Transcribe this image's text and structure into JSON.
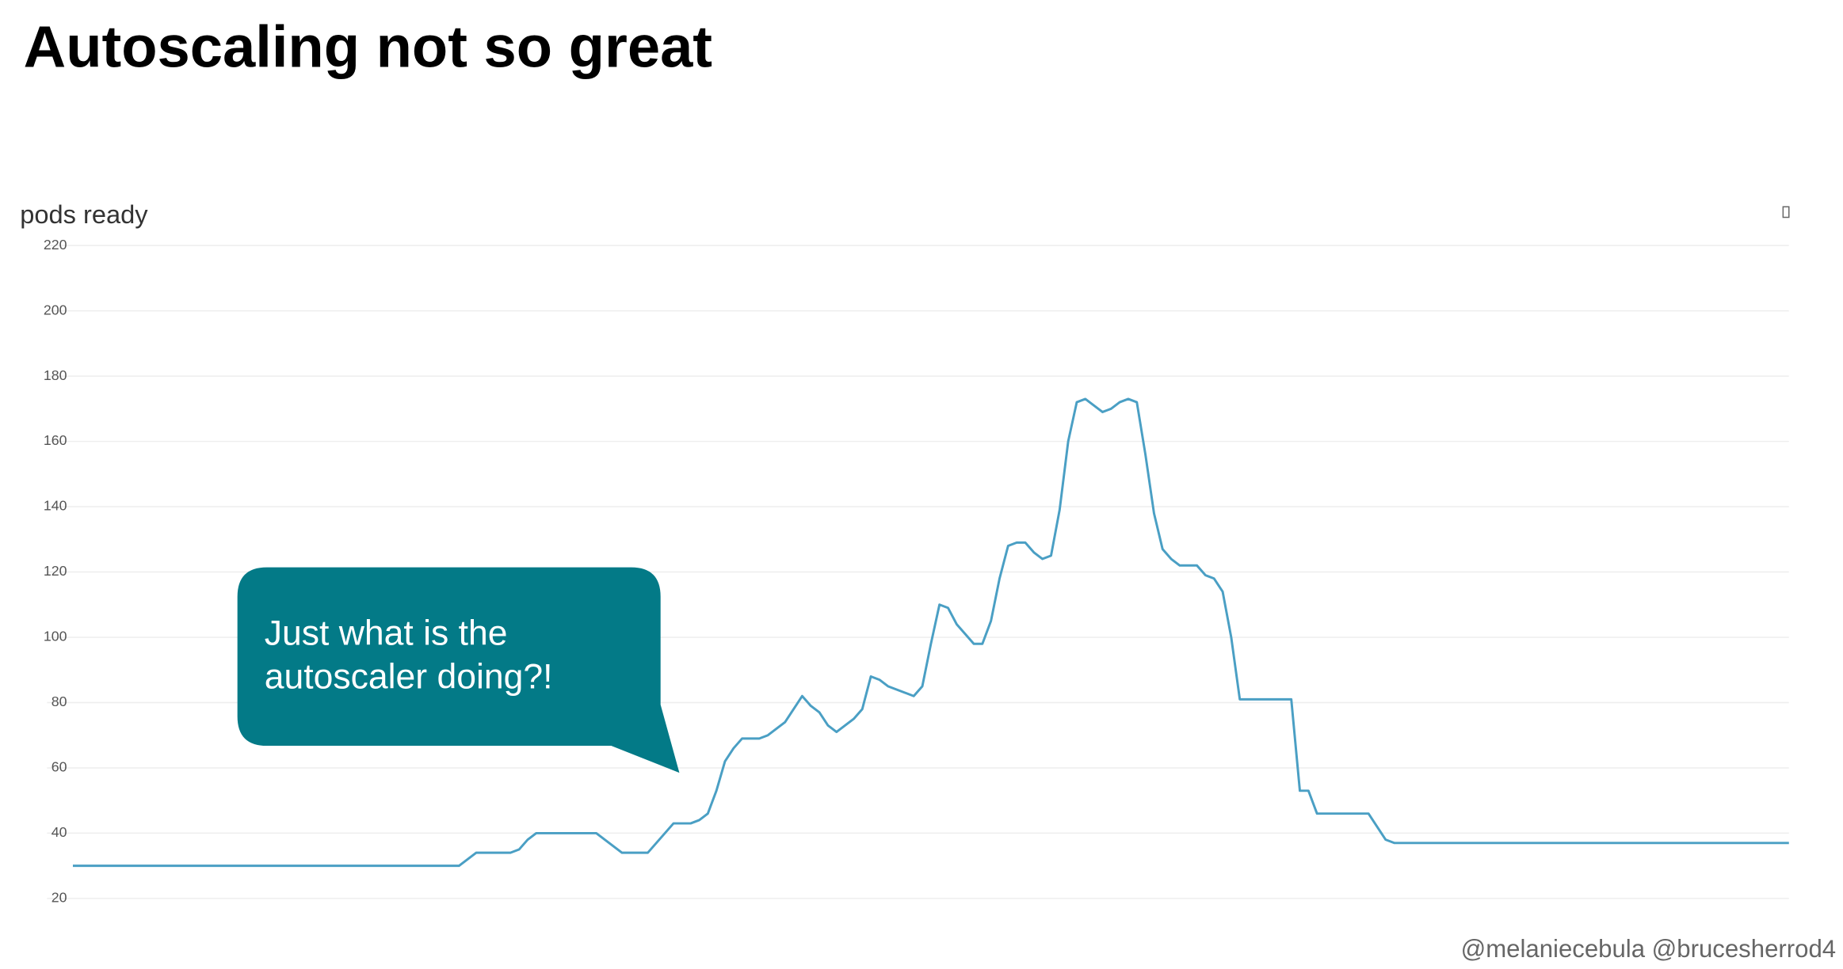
{
  "slide_title": "Autoscaling not so great",
  "callout": "Just what is the autoscaler doing?!",
  "footer": "@melaniecebula @brucesherrod4",
  "chart_data": {
    "type": "line",
    "title": "pods ready",
    "ylim": [
      20,
      220
    ],
    "yticks": [
      20,
      40,
      60,
      80,
      100,
      120,
      140,
      160,
      180,
      200,
      220
    ],
    "grid": true,
    "series": [
      {
        "name": "pods ready",
        "color": "#4a9fc4",
        "values": [
          30,
          30,
          30,
          30,
          30,
          30,
          30,
          30,
          30,
          30,
          30,
          30,
          30,
          30,
          30,
          30,
          30,
          30,
          30,
          30,
          30,
          30,
          30,
          30,
          30,
          30,
          30,
          30,
          30,
          30,
          30,
          30,
          30,
          30,
          30,
          30,
          30,
          30,
          30,
          30,
          30,
          30,
          30,
          30,
          30,
          30,
          32,
          34,
          34,
          34,
          34,
          34,
          35,
          38,
          40,
          40,
          40,
          40,
          40,
          40,
          40,
          40,
          38,
          36,
          34,
          34,
          34,
          34,
          37,
          40,
          43,
          43,
          43,
          44,
          46,
          53,
          62,
          66,
          69,
          69,
          69,
          70,
          72,
          74,
          78,
          82,
          79,
          77,
          73,
          71,
          73,
          75,
          78,
          88,
          87,
          85,
          84,
          83,
          82,
          85,
          98,
          110,
          109,
          104,
          101,
          98,
          98,
          105,
          118,
          128,
          129,
          129,
          126,
          124,
          125,
          139,
          160,
          172,
          173,
          171,
          169,
          170,
          172,
          173,
          172,
          156,
          138,
          127,
          124,
          122,
          122,
          122,
          119,
          118,
          114,
          100,
          81,
          81,
          81,
          81,
          81,
          81,
          81,
          53,
          53,
          46,
          46,
          46,
          46,
          46,
          46,
          46,
          42,
          38,
          37,
          37,
          37,
          37,
          37,
          37,
          37,
          37,
          37,
          37,
          37,
          37,
          37,
          37,
          37,
          37,
          37,
          37,
          37,
          37,
          37,
          37,
          37,
          37,
          37,
          37,
          37,
          37,
          37,
          37,
          37,
          37,
          37,
          37,
          37,
          37,
          37,
          37,
          37,
          37,
          37,
          37,
          37,
          37,
          37,
          37,
          37
        ]
      }
    ]
  }
}
